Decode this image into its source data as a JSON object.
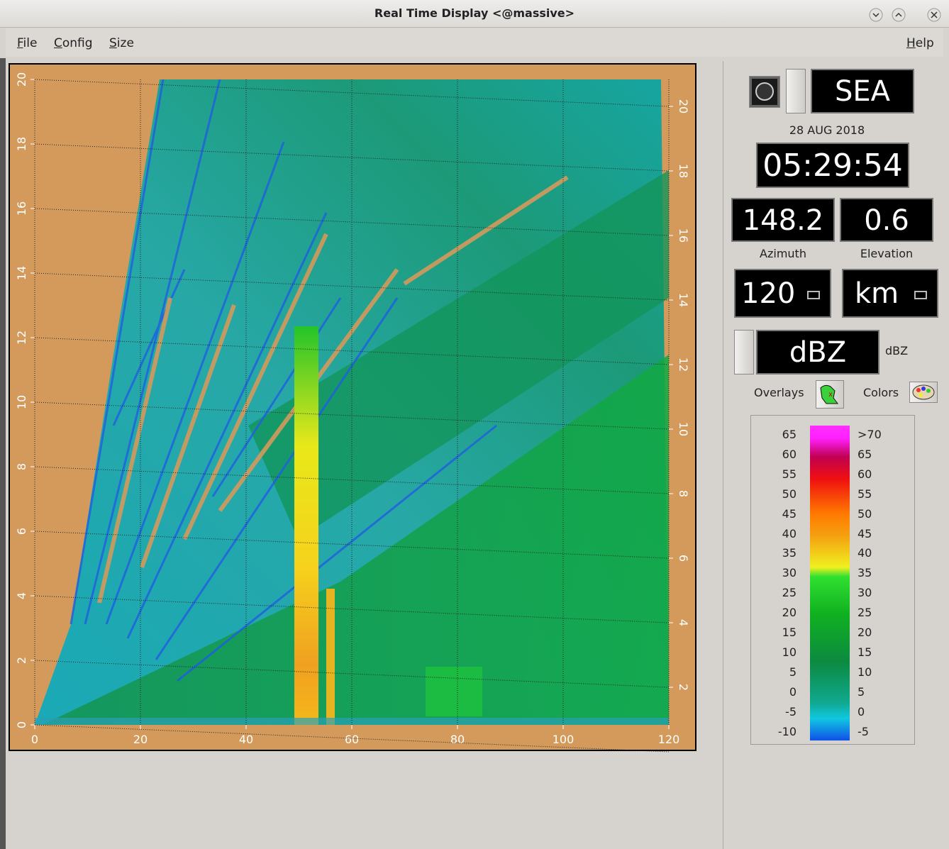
{
  "window": {
    "title": "Real Time Display <@massive>"
  },
  "menu": {
    "items": [
      "File",
      "Config",
      "Size"
    ],
    "help": "Help"
  },
  "plot": {
    "xlim": [
      0,
      120
    ],
    "ylim": [
      0,
      20
    ],
    "xticks": [
      0,
      20,
      40,
      60,
      80,
      100,
      120
    ],
    "yticks": [
      0,
      2,
      4,
      6,
      8,
      10,
      12,
      14,
      16,
      18,
      20
    ],
    "right_ticks": [
      2,
      4,
      6,
      8,
      10,
      12,
      14,
      16,
      18,
      20
    ]
  },
  "panel": {
    "station": "SEA",
    "date": "28 AUG 2018",
    "time": "05:29:54",
    "azimuth": {
      "value": "148.2",
      "label": "Azimuth"
    },
    "elevation": {
      "value": "0.6",
      "label": "Elevation"
    },
    "range": "120",
    "units": "km",
    "field": "dBZ",
    "field_units": "dBZ",
    "overlays": "Overlays",
    "colors": "Colors",
    "scale": {
      "left": [
        65,
        60,
        55,
        50,
        45,
        40,
        35,
        30,
        25,
        20,
        15,
        10,
        5,
        0,
        -5,
        -10
      ],
      "right": [
        ">70",
        65,
        60,
        55,
        50,
        45,
        40,
        35,
        30,
        25,
        20,
        15,
        10,
        5,
        0,
        -5
      ]
    }
  }
}
